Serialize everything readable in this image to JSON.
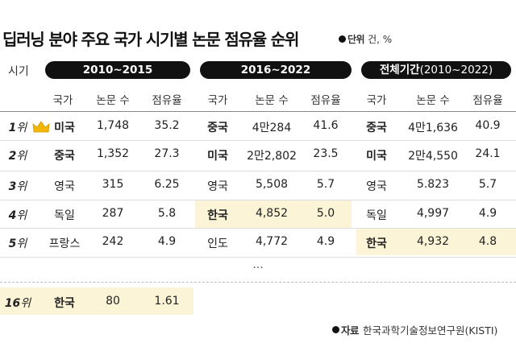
{
  "title": "딥러닝 분야 주요 국가 시기별 논문 점유율 순위",
  "unit_label": "단위",
  "unit_text": "건, %",
  "period_label": "시기",
  "periods": [
    {
      "label": "2010~2015",
      "suffix": ""
    },
    {
      "label": "2016~2022",
      "suffix": ""
    },
    {
      "label": "전체기간",
      "suffix": "(2010~2022)"
    }
  ],
  "columns": [
    "국가",
    "논문 수",
    "점유율"
  ],
  "rows": [
    {
      "rank_num": "1",
      "rank_suffix": "위",
      "cells": [
        [
          "미국",
          "1,748",
          "35.2"
        ],
        [
          "중국",
          "4만284",
          "41.6"
        ],
        [
          "중국",
          "4만1,636",
          "40.9"
        ]
      ]
    },
    {
      "rank_num": "2",
      "rank_suffix": "위",
      "cells": [
        [
          "중국",
          "1,352",
          "27.3"
        ],
        [
          "미국",
          "2만2,802",
          "23.5"
        ],
        [
          "미국",
          "2만4,550",
          "24.1"
        ]
      ]
    },
    {
      "rank_num": "3",
      "rank_suffix": "위",
      "cells": [
        [
          "영국",
          "315",
          "6.25"
        ],
        [
          "영국",
          "5,508",
          "5.7"
        ],
        [
          "영국",
          "5.823",
          "5.7"
        ]
      ]
    },
    {
      "rank_num": "4",
      "rank_suffix": "위",
      "cells": [
        [
          "독일",
          "287",
          "5.8"
        ],
        [
          "한국",
          "4,852",
          "5.0"
        ],
        [
          "독일",
          "4,997",
          "4.9"
        ]
      ]
    },
    {
      "rank_num": "5",
      "rank_suffix": "위",
      "cells": [
        [
          "프랑스",
          "242",
          "4.9"
        ],
        [
          "인도",
          "4,772",
          "4.9"
        ],
        [
          "한국",
          "4,932",
          "4.8"
        ]
      ]
    }
  ],
  "ellipsis": "...",
  "extra_row": {
    "rank_num": "16",
    "rank_suffix": "위",
    "cells": [
      [
        "한국",
        "80",
        "1.61"
      ]
    ]
  },
  "source_label": "자료",
  "source_text": "한국과학기술정보연구원(KISTI)",
  "colors": {
    "highlight": "#fbf4d6",
    "pill": "#111111",
    "crown": "#f2b705"
  }
}
